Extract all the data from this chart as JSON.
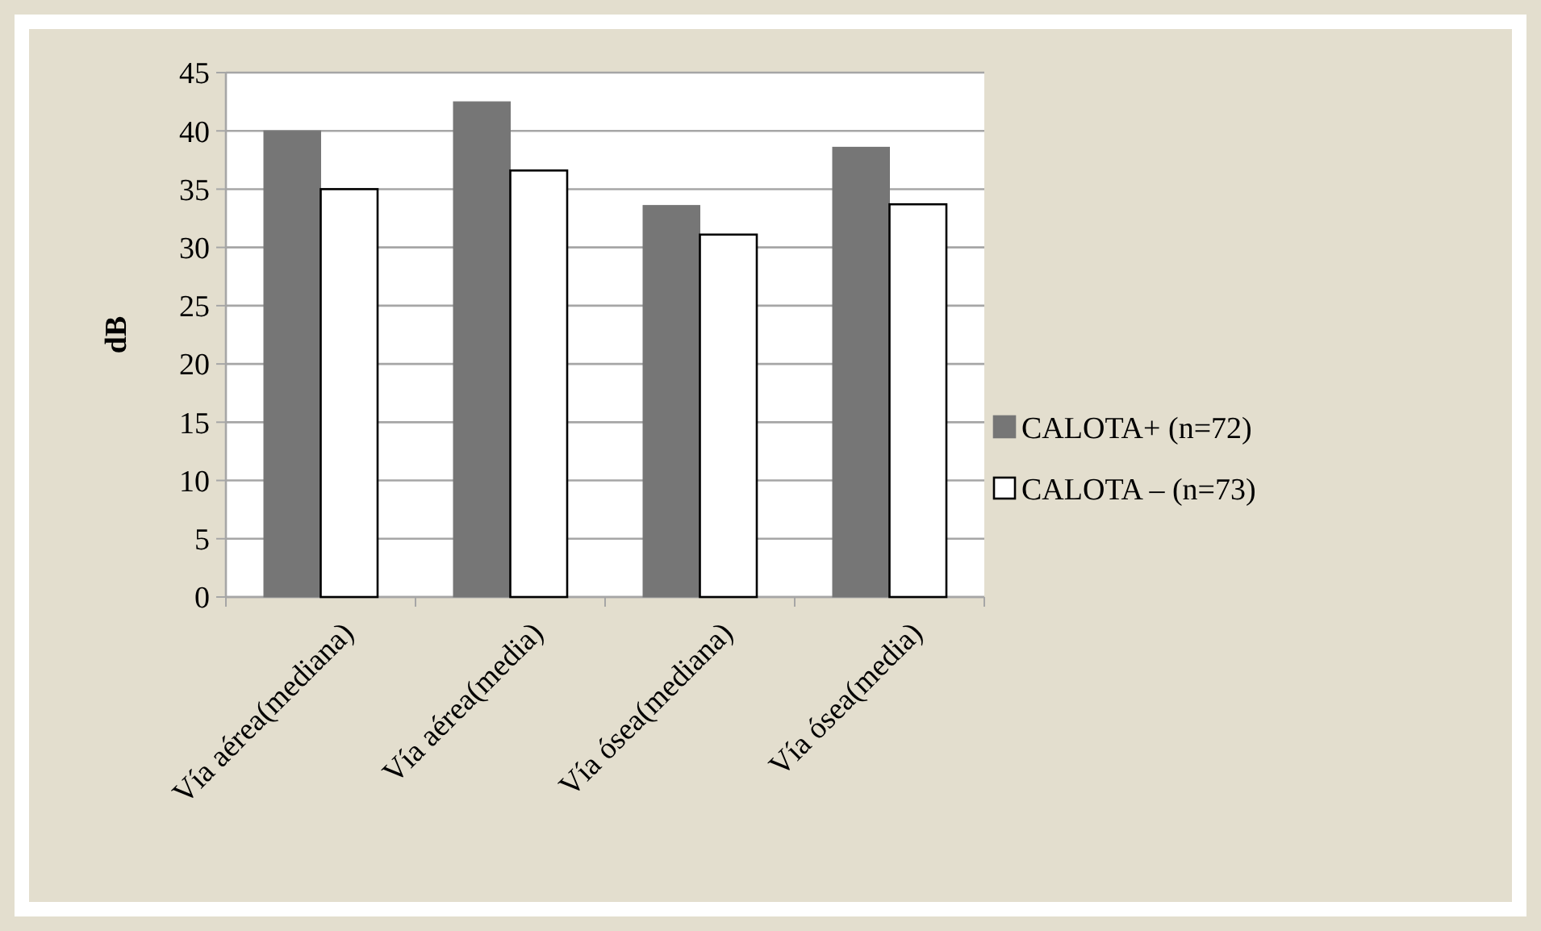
{
  "chart_data": {
    "type": "bar",
    "ylabel": "dB",
    "categories": [
      "Vía aérea(mediana)",
      "Vía aérea(media)",
      "Vía ósea(mediana)",
      "Vía ósea(media)"
    ],
    "series": [
      {
        "name": "CALOTA+ (n=72)",
        "color": "#767676",
        "values": [
          40,
          42.5,
          33.6,
          38.6
        ]
      },
      {
        "name": "CALOTA – (n=73)",
        "color": "#ffffff",
        "values": [
          35,
          36.6,
          31.1,
          33.7
        ]
      }
    ],
    "ylim": [
      0,
      45
    ],
    "yticks": [
      0,
      5,
      10,
      15,
      20,
      25,
      30,
      35,
      40,
      45
    ],
    "grid": "y",
    "legend": "right"
  }
}
